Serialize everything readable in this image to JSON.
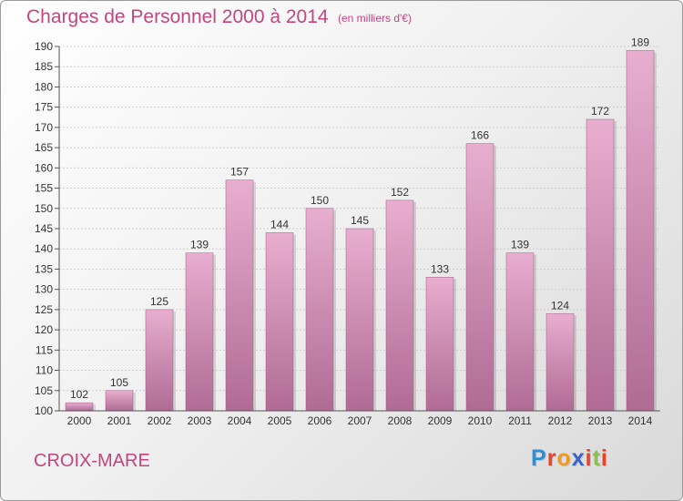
{
  "header": {
    "title": "Charges de Personnel 2000 à 2014",
    "subtitle": "(en milliers d'€)"
  },
  "footer": {
    "town": "CROIX-MARE",
    "logo": "Proxiti"
  },
  "logo_colors": [
    "#2f8fd6",
    "#e8412c",
    "#f39a1e",
    "#3a62c9",
    "#e8412c",
    "#8bc43f",
    "#e8412c"
  ],
  "colors": {
    "bar_top": "#e8aed0",
    "bar_bottom": "#b06b94",
    "title": "#c2457f",
    "axis_text": "#333333"
  },
  "chart_data": {
    "type": "bar",
    "title": "Charges de Personnel 2000 à 2014",
    "subtitle": "(en milliers d'€)",
    "xlabel": "",
    "ylabel": "",
    "categories": [
      "2000",
      "2001",
      "2002",
      "2003",
      "2004",
      "2005",
      "2006",
      "2007",
      "2008",
      "2009",
      "2010",
      "2011",
      "2012",
      "2013",
      "2014"
    ],
    "values": [
      102,
      105,
      125,
      139,
      157,
      144,
      150,
      145,
      152,
      133,
      166,
      139,
      124,
      172,
      189
    ],
    "ylim": [
      100,
      190
    ],
    "yticks": [
      100,
      105,
      110,
      115,
      120,
      125,
      130,
      135,
      140,
      145,
      150,
      155,
      160,
      165,
      170,
      175,
      180,
      185,
      190
    ],
    "grid": "y",
    "legend": "none"
  }
}
